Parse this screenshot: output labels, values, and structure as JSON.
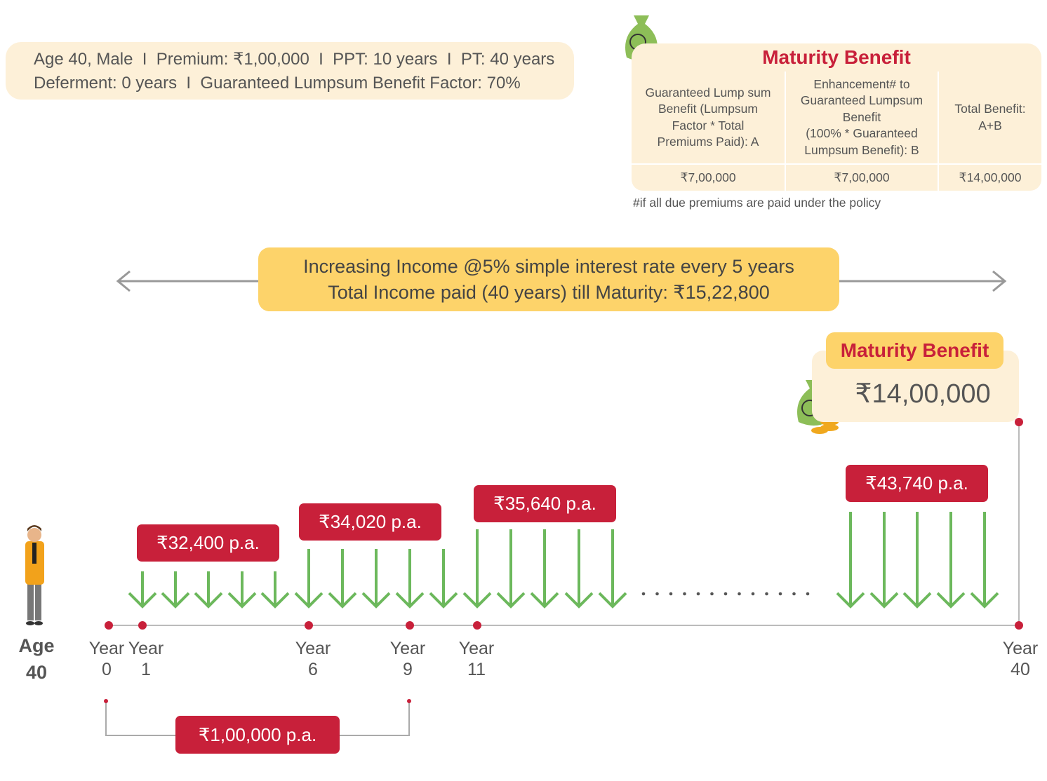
{
  "summary": {
    "line1": "Age 40, Male  I  Premium: ₹1,00,000  I  PPT: 10 years  I  PT: 40 years",
    "line2": "Deferment: 0 years  I  Guaranteed Lumpsum Benefit Factor: 70%"
  },
  "maturity_table": {
    "title": "Maturity Benefit",
    "headers": [
      [
        "Guaranteed Lump sum",
        "Benefit (Lumpsum",
        "Factor * Total",
        "Premiums Paid): A"
      ],
      [
        "Enhancement# to",
        "Guaranteed Lumpsum",
        "Benefit",
        "(100% * Guaranteed",
        "Lumpsum Benefit): B"
      ],
      [
        "Total Benefit:",
        "A+B"
      ]
    ],
    "values": [
      "₹7,00,000",
      "₹7,00,000",
      "₹14,00,000"
    ],
    "footnote": "#if all due premiums are paid under the policy"
  },
  "banner": {
    "line1": "Increasing Income @5% simple interest rate every 5 years",
    "line2": "Total Income paid (40 years) till Maturity: ₹15,22,800"
  },
  "maturity_callout": {
    "title": "Maturity Benefit",
    "amount": "₹14,00,000"
  },
  "income_labels": [
    "₹32,400 p.a.",
    "₹34,020 p.a.",
    "₹35,640 p.a.",
    "₹43,740 p.a."
  ],
  "timeline": {
    "age": [
      "Age",
      "40"
    ],
    "years": [
      {
        "word": "Year",
        "number": "0"
      },
      {
        "word": "Year",
        "number": "1"
      },
      {
        "word": "Year",
        "number": "6"
      },
      {
        "word": "Year",
        "number": "9"
      },
      {
        "word": "Year",
        "number": "11"
      },
      {
        "word": "Year",
        "number": "40"
      }
    ]
  },
  "premium_label": "₹1,00,000 p.a."
}
